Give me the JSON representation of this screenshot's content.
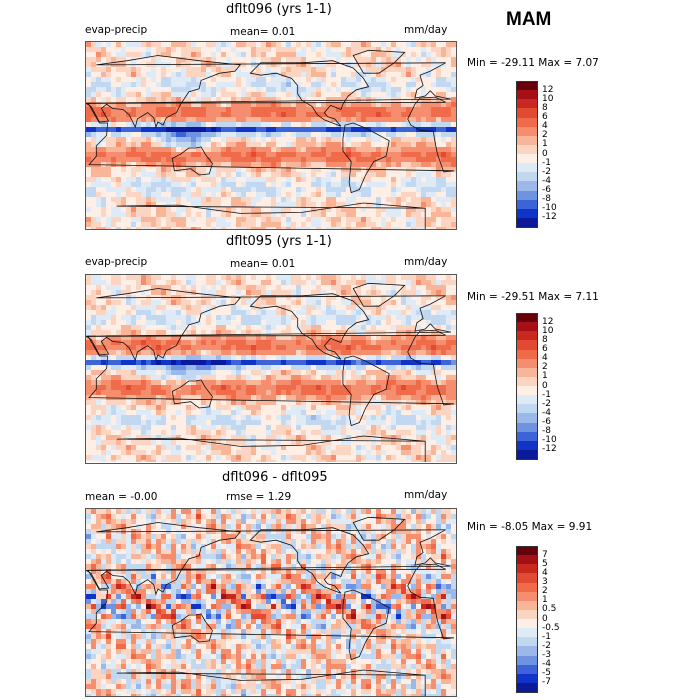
{
  "season": "MAM",
  "panels": [
    {
      "title": "dflt096 (yrs 1-1)",
      "left_label": "evap-precip",
      "mid_label": "mean=   0.01",
      "right_label": "mm/day",
      "minmax": "Min = -29.11  Max =    7.07",
      "colorbar": {
        "ticks": [
          "12",
          "10",
          "8",
          "6",
          "4",
          "2",
          "1",
          "0",
          "-1",
          "-2",
          "-4",
          "-6",
          "-8",
          "-10",
          "-12"
        ],
        "colors": [
          "#67000d",
          "#a50f15",
          "#c8281e",
          "#e34a33",
          "#ef6b4a",
          "#f58e6e",
          "#f9b598",
          "#fbd5c2",
          "#fdeee6",
          "#deebf7",
          "#c2d8f1",
          "#9ab9ea",
          "#6f93e0",
          "#3c64d8",
          "#1233c8",
          "#0a1a9a"
        ]
      }
    },
    {
      "title": "dflt095 (yrs 1-1)",
      "left_label": "evap-precip",
      "mid_label": "mean=   0.01",
      "right_label": "mm/day",
      "minmax": "Min = -29.51  Max =    7.11",
      "colorbar": {
        "ticks": [
          "12",
          "10",
          "8",
          "6",
          "4",
          "2",
          "1",
          "0",
          "-1",
          "-2",
          "-4",
          "-6",
          "-8",
          "-10",
          "-12"
        ],
        "colors": [
          "#67000d",
          "#a50f15",
          "#c8281e",
          "#e34a33",
          "#ef6b4a",
          "#f58e6e",
          "#f9b598",
          "#fbd5c2",
          "#fdeee6",
          "#deebf7",
          "#c2d8f1",
          "#9ab9ea",
          "#6f93e0",
          "#3c64d8",
          "#1233c8",
          "#0a1a9a"
        ]
      }
    },
    {
      "title": "dflt096 - dflt095",
      "left_label": "mean =   -0.00",
      "mid_label": "rmse =    1.29",
      "right_label": "mm/day",
      "minmax": "Min =  -8.05  Max =    9.91",
      "colorbar": {
        "ticks": [
          "7",
          "5",
          "4",
          "3",
          "2",
          "1",
          "0.5",
          "0",
          "-0.5",
          "-1",
          "-2",
          "-3",
          "-4",
          "-5",
          "-7"
        ],
        "colors": [
          "#67000d",
          "#a50f15",
          "#c8281e",
          "#e34a33",
          "#ef6b4a",
          "#f58e6e",
          "#f9b598",
          "#fbd5c2",
          "#fdeee6",
          "#deebf7",
          "#c2d8f1",
          "#9ab9ea",
          "#6f93e0",
          "#3c64d8",
          "#1233c8",
          "#0a1a9a"
        ]
      }
    }
  ],
  "chart_data": [
    {
      "type": "heatmap",
      "title": "dflt096 (yrs 1-1)",
      "variable": "evap-precip",
      "units": "mm/day",
      "mean": 0.01,
      "min": -29.11,
      "max": 7.07,
      "levels": [
        -12,
        -10,
        -8,
        -6,
        -4,
        -2,
        -1,
        0,
        1,
        2,
        4,
        6,
        8,
        10,
        12
      ]
    },
    {
      "type": "heatmap",
      "title": "dflt095 (yrs 1-1)",
      "variable": "evap-precip",
      "units": "mm/day",
      "mean": 0.01,
      "min": -29.51,
      "max": 7.11,
      "levels": [
        -12,
        -10,
        -8,
        -6,
        -4,
        -2,
        -1,
        0,
        1,
        2,
        4,
        6,
        8,
        10,
        12
      ]
    },
    {
      "type": "heatmap",
      "title": "dflt096 - dflt095",
      "units": "mm/day",
      "mean": -0.0,
      "rmse": 1.29,
      "min": -8.05,
      "max": 9.91,
      "levels": [
        -7,
        -5,
        -4,
        -3,
        -2,
        -1,
        -0.5,
        0,
        0.5,
        1,
        2,
        3,
        4,
        5,
        7
      ]
    }
  ]
}
